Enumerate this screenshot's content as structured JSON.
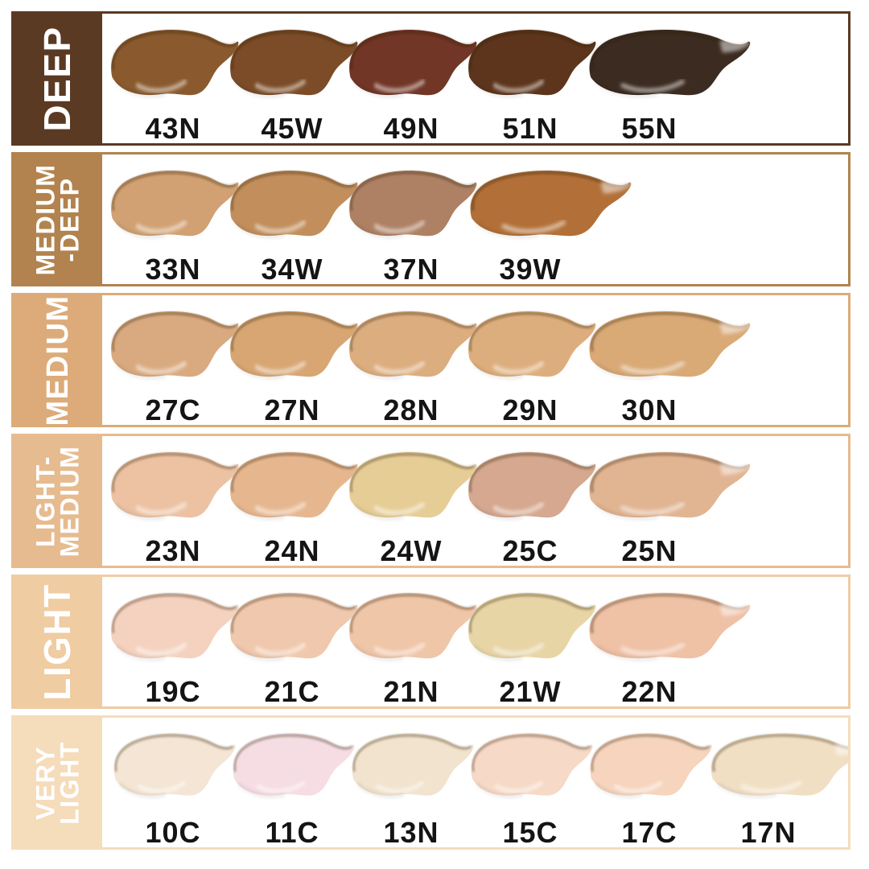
{
  "chart_data": {
    "type": "table",
    "description": "Foundation shade chart grouped by depth category",
    "groups": [
      {
        "id": "deep",
        "category": "DEEP",
        "label_lines": [
          "DEEP"
        ],
        "band_color": "#5b3a23",
        "shades": [
          {
            "code": "43N",
            "hex": "#8a5a2e"
          },
          {
            "code": "45W",
            "hex": "#7b4c27"
          },
          {
            "code": "49N",
            "hex": "#713625"
          },
          {
            "code": "51N",
            "hex": "#5d351c"
          },
          {
            "code": "55N",
            "hex": "#3b2b20"
          }
        ]
      },
      {
        "id": "medium-deep",
        "category": "MEDIUM-DEEP",
        "label_lines": [
          "MEDIUM",
          "-DEEP"
        ],
        "band_color": "#b2834e",
        "shades": [
          {
            "code": "33N",
            "hex": "#d1a173"
          },
          {
            "code": "34W",
            "hex": "#c28e5c"
          },
          {
            "code": "37N",
            "hex": "#ae8164"
          },
          {
            "code": "39W",
            "hex": "#b27038"
          }
        ]
      },
      {
        "id": "medium",
        "category": "MEDIUM",
        "label_lines": [
          "MEDIUM"
        ],
        "band_color": "#dcab79",
        "shades": [
          {
            "code": "27C",
            "hex": "#d9aa80"
          },
          {
            "code": "27N",
            "hex": "#d7a673"
          },
          {
            "code": "28N",
            "hex": "#dcad7f"
          },
          {
            "code": "29N",
            "hex": "#ddae7d"
          },
          {
            "code": "30N",
            "hex": "#d9a976"
          }
        ]
      },
      {
        "id": "light-medium",
        "category": "LIGHT-MEDIUM",
        "label_lines": [
          "LIGHT-",
          "MEDIUM"
        ],
        "band_color": "#e6bb8f",
        "shades": [
          {
            "code": "23N",
            "hex": "#ecc2a2"
          },
          {
            "code": "24N",
            "hex": "#e6b78f"
          },
          {
            "code": "24W",
            "hex": "#e6cd96"
          },
          {
            "code": "25C",
            "hex": "#d5a88f"
          },
          {
            "code": "25N",
            "hex": "#e1b492"
          }
        ]
      },
      {
        "id": "light",
        "category": "LIGHT",
        "label_lines": [
          "LIGHT"
        ],
        "band_color": "#efcca2",
        "shades": [
          {
            "code": "19C",
            "hex": "#f4d2bf"
          },
          {
            "code": "21C",
            "hex": "#f0c8ad"
          },
          {
            "code": "21N",
            "hex": "#f0c6a9"
          },
          {
            "code": "21W",
            "hex": "#e8d5a6"
          },
          {
            "code": "22N",
            "hex": "#efc1a5"
          }
        ]
      },
      {
        "id": "very-light",
        "category": "VERY LIGHT",
        "label_lines": [
          "VERY",
          "LIGHT"
        ],
        "band_color": "#f5dcba",
        "shades": [
          {
            "code": "10C",
            "hex": "#f4e5d4"
          },
          {
            "code": "11C",
            "hex": "#f5dde3"
          },
          {
            "code": "13N",
            "hex": "#f1e3cd"
          },
          {
            "code": "15C",
            "hex": "#f6d9c6"
          },
          {
            "code": "17C",
            "hex": "#f6d4bd"
          },
          {
            "code": "17N",
            "hex": "#f1dfc4"
          }
        ]
      }
    ]
  },
  "colors": {
    "background": "#ffffff",
    "shade_code_text": "#141414",
    "band_text": "#ffffff"
  }
}
